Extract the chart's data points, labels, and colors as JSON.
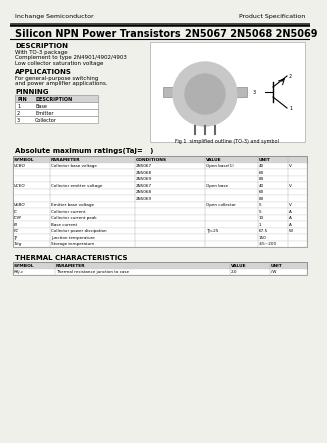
{
  "company": "Inchange Semiconductor",
  "product_spec": "Product Specification",
  "title": "Silicon NPN Power Transistors",
  "part_numbers": "2N5067 2N5068 2N5069",
  "description_title": "DESCRIPTION",
  "description_lines": [
    "With TO-3 package",
    "Complement to type 2N4901/4902/4903",
    "Low collector saturation voltage"
  ],
  "applications_title": "APPLICATIONS",
  "applications_lines": [
    "For general-purpose switching",
    "and power amplifier applications."
  ],
  "pinning_title": "PINNING",
  "pin_headers": [
    "PIN",
    "DESCRIPTION"
  ],
  "pins": [
    [
      "1",
      "Base"
    ],
    [
      "2",
      "Emitter"
    ],
    [
      "3",
      "Collector"
    ]
  ],
  "fig_caption": "Fig 1  simplified outline (TO-3) and symbol",
  "abs_max_title": "Absolute maximum ratings(Taj=   )",
  "table1_headers": [
    "SYMBOL",
    "PARAMETER",
    "CONDITIONS",
    "VALUE",
    "UNIT"
  ],
  "sym_disp": [
    "VCBO",
    "",
    "",
    "VCEO",
    "",
    "",
    "VEBO",
    "IC",
    "ICM",
    "IB",
    "PC",
    "TJ",
    "Tstg"
  ],
  "params": [
    "Collector base voltage",
    "",
    "",
    "Collector emitter voltage",
    "",
    "",
    "Emitter base voltage",
    "Collector current",
    "Collector current peak",
    "Base current",
    "Collector power dissipation",
    "Junction temperature",
    "Storage temperature"
  ],
  "parts": [
    "2N5067",
    "2N5068",
    "2N5069",
    "2N5067",
    "2N5068",
    "2N5069",
    "",
    "",
    "",
    "",
    "",
    "",
    ""
  ],
  "conds": [
    "Open base(1)",
    "",
    "",
    "Open base",
    "",
    "",
    "Open collector",
    "",
    "",
    "",
    "TJ=25",
    "",
    ""
  ],
  "vals": [
    "40",
    "60",
    "80",
    "40",
    "60",
    "80",
    "5",
    "5",
    "10",
    "1",
    "67.5",
    "150",
    "-65~200"
  ],
  "units": [
    "V",
    "",
    "",
    "V",
    "",
    "",
    "V",
    "A",
    "A",
    "A",
    "W",
    "",
    ""
  ],
  "thermal_title": "THERMAL CHARACTERISTICS",
  "th_headers": [
    "SYMBOL",
    "PARAMETER",
    "VALUE",
    "UNIT"
  ],
  "th_sym": "Rθj-c",
  "th_param": "Thermal resistance junction to case",
  "th_val": "2.0",
  "th_unit": "/W",
  "bg_color": "#f0f0eb",
  "white": "#ffffff",
  "hdr_fill": "#d4d4d4",
  "line_col": "#888888"
}
